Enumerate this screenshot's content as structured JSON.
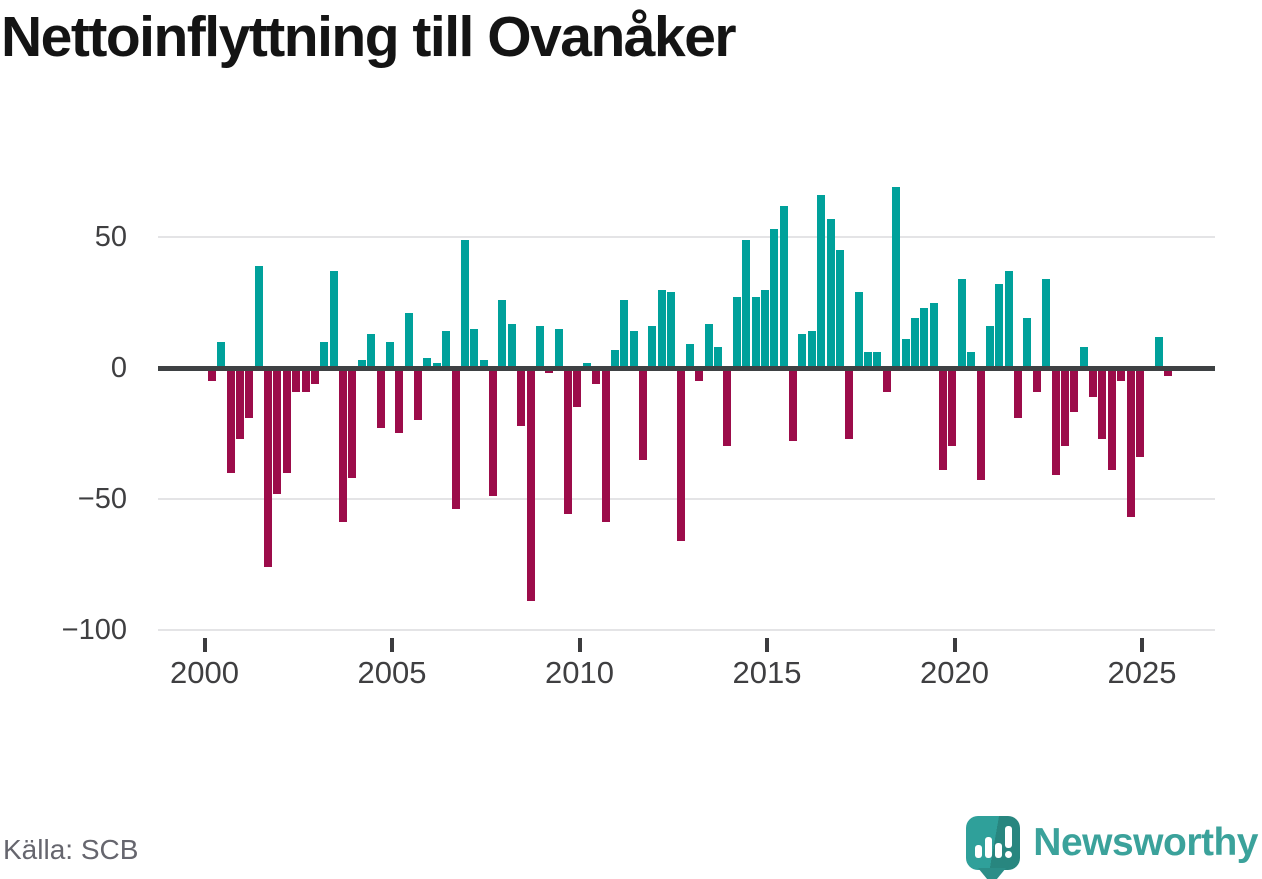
{
  "title": "Nettoinflyttning till Ovanåker",
  "source": {
    "text": "Källa: SCB"
  },
  "branding": {
    "name": "Newsworthy",
    "icon": "speech-bubble-bar-chart-icon"
  },
  "colors": {
    "positive_bar": "#00a19b",
    "negative_bar": "#9c0c4a",
    "zero_axis": "#3e4143",
    "gridline": "#e4e4e6",
    "axis_text": "#3f3f41",
    "source_text": "#66666e",
    "brand_teal": "#3ba29b",
    "title_text": "#141414"
  },
  "chart_data": {
    "type": "bar",
    "title": "Nettoinflyttning till Ovanåker",
    "xlabel": "",
    "ylabel": "",
    "ylim": [
      -100,
      75
    ],
    "grid": "horizontal",
    "legend": "none",
    "frequency": "quarterly",
    "y_ticks": [
      {
        "label": "50",
        "value": 50
      },
      {
        "label": "0",
        "value": 0
      },
      {
        "label": "−50",
        "value": -50
      },
      {
        "label": "−100",
        "value": -100
      }
    ],
    "x_ticks": [
      {
        "label": "2000",
        "year": 2000
      },
      {
        "label": "2005",
        "year": 2005
      },
      {
        "label": "2010",
        "year": 2010
      },
      {
        "label": "2015",
        "year": 2015
      },
      {
        "label": "2020",
        "year": 2020
      },
      {
        "label": "2025",
        "year": 2025
      }
    ],
    "categories": [
      "2000 Q1",
      "2000 Q2",
      "2000 Q3",
      "2000 Q4",
      "2001 Q1",
      "2001 Q2",
      "2001 Q3",
      "2001 Q4",
      "2002 Q1",
      "2002 Q2",
      "2002 Q3",
      "2002 Q4",
      "2003 Q1",
      "2003 Q2",
      "2003 Q3",
      "2003 Q4",
      "2004 Q1",
      "2004 Q2",
      "2004 Q3",
      "2004 Q4",
      "2005 Q1",
      "2005 Q2",
      "2005 Q3",
      "2005 Q4",
      "2006 Q1",
      "2006 Q2",
      "2006 Q3",
      "2006 Q4",
      "2007 Q1",
      "2007 Q2",
      "2007 Q3",
      "2007 Q4",
      "2008 Q1",
      "2008 Q2",
      "2008 Q3",
      "2008 Q4",
      "2009 Q1",
      "2009 Q2",
      "2009 Q3",
      "2009 Q4",
      "2010 Q1",
      "2010 Q2",
      "2010 Q3",
      "2010 Q4",
      "2011 Q1",
      "2011 Q2",
      "2011 Q3",
      "2011 Q4",
      "2012 Q1",
      "2012 Q2",
      "2012 Q3",
      "2012 Q4",
      "2013 Q1",
      "2013 Q2",
      "2013 Q3",
      "2013 Q4",
      "2014 Q1",
      "2014 Q2",
      "2014 Q3",
      "2014 Q4",
      "2015 Q1",
      "2015 Q2",
      "2015 Q3",
      "2015 Q4",
      "2016 Q1",
      "2016 Q2",
      "2016 Q3",
      "2016 Q4",
      "2017 Q1",
      "2017 Q2",
      "2017 Q3",
      "2017 Q4",
      "2018 Q1",
      "2018 Q2",
      "2018 Q3",
      "2018 Q4",
      "2019 Q1",
      "2019 Q2",
      "2019 Q3",
      "2019 Q4",
      "2020 Q1",
      "2020 Q2",
      "2020 Q3",
      "2020 Q4",
      "2021 Q1",
      "2021 Q2",
      "2021 Q3",
      "2021 Q4",
      "2022 Q1",
      "2022 Q2",
      "2022 Q3",
      "2022 Q4",
      "2023 Q1",
      "2023 Q2",
      "2023 Q3",
      "2023 Q4",
      "2024 Q1",
      "2024 Q2",
      "2024 Q3",
      "2024 Q4",
      "2025 Q1",
      "2025 Q2",
      "2025 Q3"
    ],
    "values": [
      -5,
      10,
      -40,
      -27,
      -19,
      39,
      -76,
      -48,
      -40,
      -9,
      -9,
      -6,
      10,
      37,
      -59,
      -42,
      3,
      13,
      -23,
      10,
      -25,
      21,
      -20,
      4,
      2,
      14,
      -54,
      49,
      15,
      3,
      -49,
      26,
      17,
      -22,
      -89,
      16,
      -2,
      15,
      -56,
      -15,
      2,
      -6,
      -59,
      7,
      26,
      14,
      -35,
      16,
      30,
      29,
      -66,
      9,
      -5,
      17,
      8,
      -30,
      27,
      49,
      27,
      30,
      53,
      62,
      -28,
      13,
      14,
      66,
      57,
      45,
      -27,
      29,
      6,
      6,
      -9,
      69,
      11,
      19,
      23,
      25,
      -39,
      -30,
      34,
      6,
      -43,
      16,
      32,
      37,
      -19,
      19,
      -9,
      34,
      -41,
      -30,
      -17,
      8,
      -11,
      -27,
      -39,
      -5,
      -57,
      -34,
      0,
      12,
      -3
    ]
  }
}
